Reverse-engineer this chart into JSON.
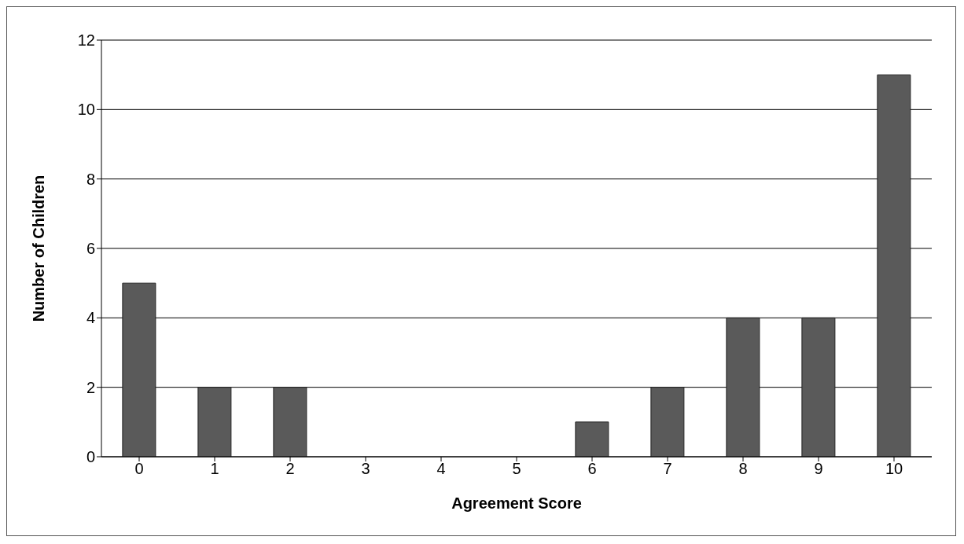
{
  "chart_data": {
    "type": "bar",
    "xlabel": "Agreement Score",
    "ylabel": "Number of Children",
    "categories": [
      "0",
      "1",
      "2",
      "3",
      "4",
      "5",
      "6",
      "7",
      "8",
      "9",
      "10"
    ],
    "values": [
      5,
      2,
      2,
      0,
      0,
      0,
      1,
      2,
      4,
      4,
      11
    ],
    "color": "#5a5a5a",
    "ylim": [
      0,
      12
    ],
    "yticks": [
      0,
      2,
      4,
      6,
      8,
      10,
      12
    ],
    "grid": "y"
  }
}
